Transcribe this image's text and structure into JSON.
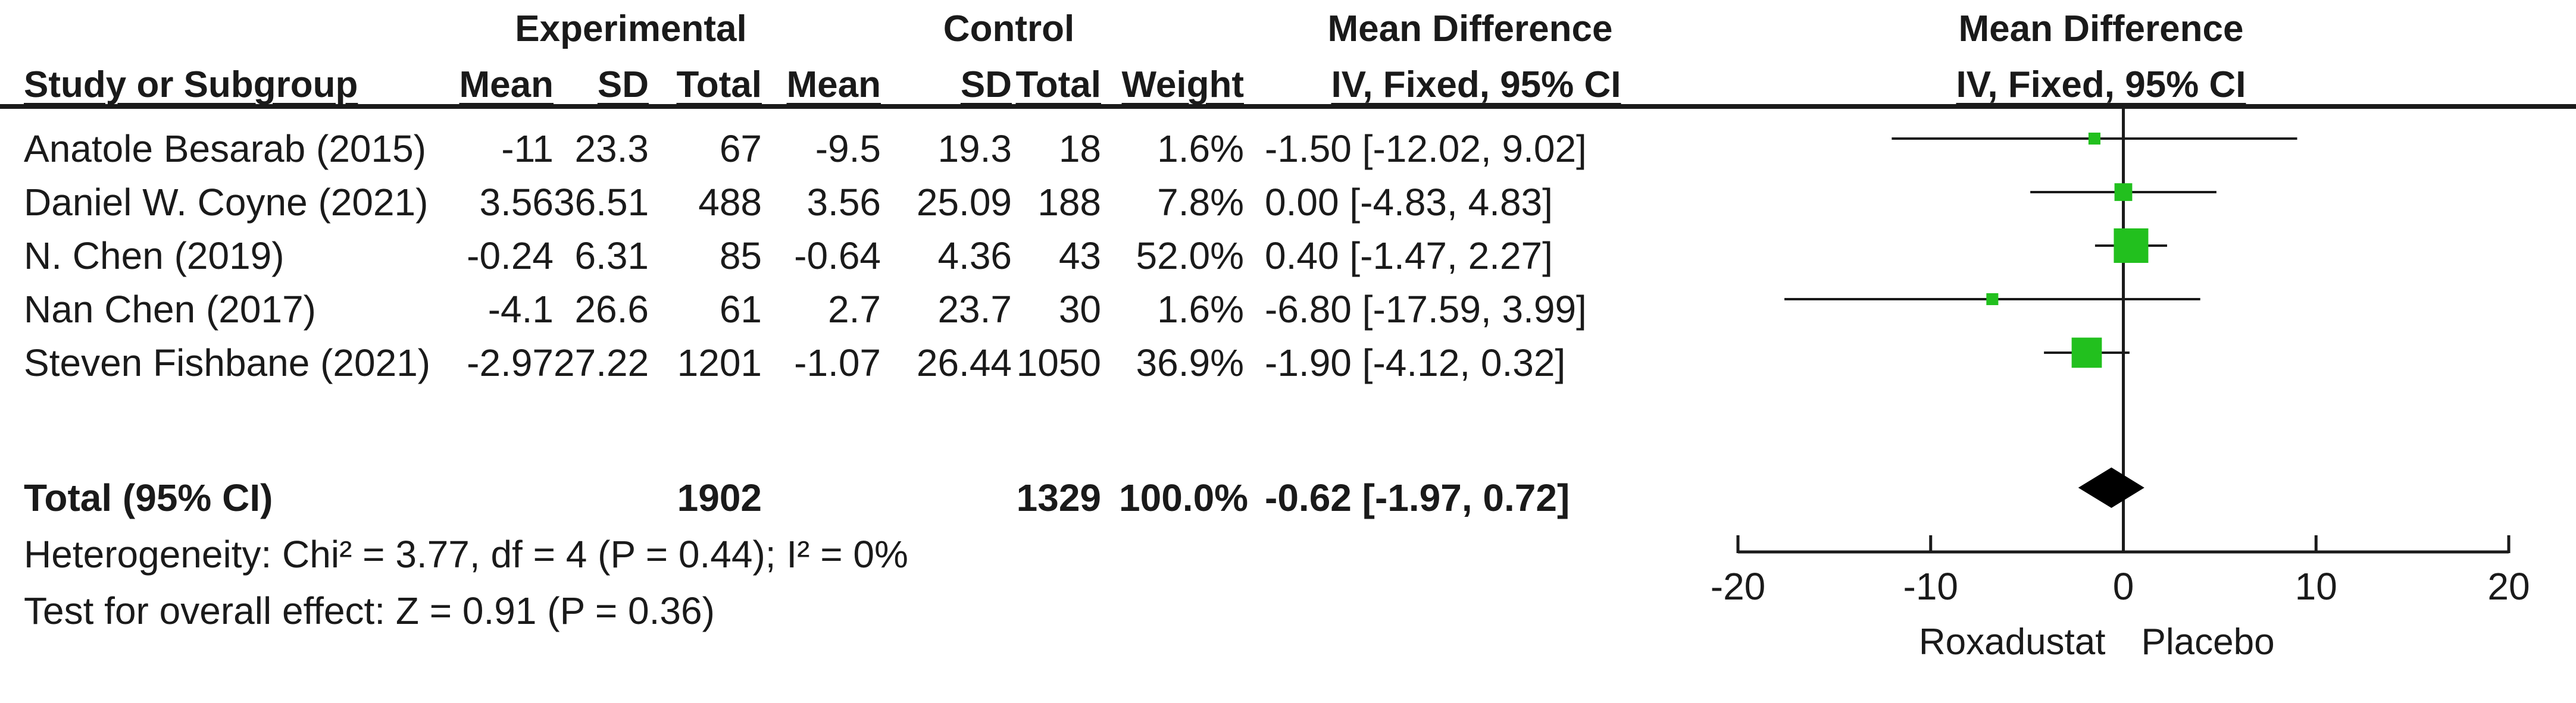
{
  "headers": {
    "group_experimental": "Experimental",
    "group_control": "Control",
    "group_mean_diff": "Mean Difference",
    "group_plot": "Mean Difference",
    "study": "Study or Subgroup",
    "mean_e": "Mean",
    "sd_e": "SD",
    "total_e": "Total",
    "mean_c": "Mean",
    "sd_c": "SD",
    "total_c": "Total",
    "weight": "Weight",
    "ci_method": "IV, Fixed, 95% CI",
    "plot_method": "IV, Fixed, 95% CI"
  },
  "studies": [
    {
      "name": "Anatole Besarab (2015)",
      "mean_e": "-11",
      "sd_e": "23.3",
      "total_e": "67",
      "mean_c": "-9.5",
      "sd_c": "19.3",
      "total_c": "18",
      "weight": "1.6%",
      "ci": "-1.50 [-12.02, 9.02]"
    },
    {
      "name": "Daniel W. Coyne (2021)",
      "mean_e": "3.56",
      "sd_e": "36.51",
      "total_e": "488",
      "mean_c": "3.56",
      "sd_c": "25.09",
      "total_c": "188",
      "weight": "7.8%",
      "ci": "0.00 [-4.83, 4.83]"
    },
    {
      "name": "N. Chen (2019)",
      "mean_e": "-0.24",
      "sd_e": "6.31",
      "total_e": "85",
      "mean_c": "-0.64",
      "sd_c": "4.36",
      "total_c": "43",
      "weight": "52.0%",
      "ci": "0.40 [-1.47, 2.27]"
    },
    {
      "name": "Nan Chen (2017)",
      "mean_e": "-4.1",
      "sd_e": "26.6",
      "total_e": "61",
      "mean_c": "2.7",
      "sd_c": "23.7",
      "total_c": "30",
      "weight": "1.6%",
      "ci": "-6.80 [-17.59, 3.99]"
    },
    {
      "name": "Steven Fishbane (2021)",
      "mean_e": "-2.97",
      "sd_e": "27.22",
      "total_e": "1201",
      "mean_c": "-1.07",
      "sd_c": "26.44",
      "total_c": "1050",
      "weight": "36.9%",
      "ci": "-1.90 [-4.12, 0.32]"
    }
  ],
  "total": {
    "label": "Total (95% CI)",
    "total_e": "1902",
    "total_c": "1329",
    "weight": "100.0%",
    "ci": "-0.62 [-1.97, 0.72]"
  },
  "heterogeneity": "Heterogeneity: Chi² = 3.77, df = 4 (P = 0.44); I² = 0%",
  "overall_effect": "Test for overall effect: Z = 0.91 (P = 0.36)",
  "chart_data": {
    "type": "forest",
    "xlim": [
      -20,
      20
    ],
    "xticks": [
      -20,
      -10,
      0,
      10,
      20
    ],
    "tick_labels": [
      "-20",
      "-10",
      "0",
      "10",
      "20"
    ],
    "xlabel_left": "Roxadustat",
    "xlabel_right": "Placebo",
    "marker_color": "#22c01e",
    "summary_color": "#000000",
    "points": [
      {
        "study": "Anatole Besarab (2015)",
        "md": -1.5,
        "lo": -12.02,
        "hi": 9.02,
        "weight": 1.6
      },
      {
        "study": "Daniel W. Coyne (2021)",
        "md": 0.0,
        "lo": -4.83,
        "hi": 4.83,
        "weight": 7.8
      },
      {
        "study": "N. Chen (2019)",
        "md": 0.4,
        "lo": -1.47,
        "hi": 2.27,
        "weight": 52.0
      },
      {
        "study": "Nan Chen (2017)",
        "md": -6.8,
        "lo": -17.59,
        "hi": 3.99,
        "weight": 1.6
      },
      {
        "study": "Steven Fishbane (2021)",
        "md": -1.9,
        "lo": -4.12,
        "hi": 0.32,
        "weight": 36.9
      }
    ],
    "summary": {
      "md": -0.62,
      "lo": -1.97,
      "hi": 0.72
    }
  }
}
